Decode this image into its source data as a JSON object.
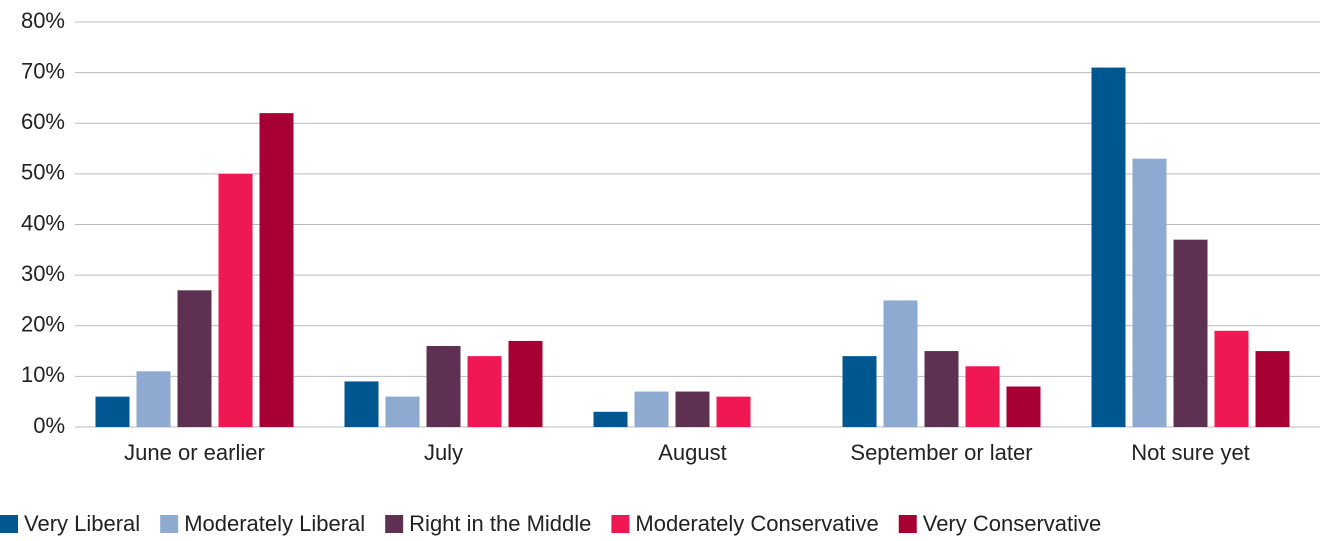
{
  "chart_data": {
    "type": "bar",
    "categories": [
      "June or earlier",
      "July",
      "August",
      "September or later",
      "Not sure yet"
    ],
    "series": [
      {
        "name": "Very Liberal",
        "color": "#00578f",
        "values": [
          6,
          9,
          3,
          14,
          71
        ]
      },
      {
        "name": "Moderately Liberal",
        "color": "#8eaad0",
        "values": [
          11,
          6,
          7,
          25,
          53
        ]
      },
      {
        "name": "Right in the Middle",
        "color": "#5e3152",
        "values": [
          27,
          16,
          7,
          15,
          37
        ]
      },
      {
        "name": "Moderately Conservative",
        "color": "#ef1852",
        "values": [
          50,
          14,
          6,
          12,
          19
        ]
      },
      {
        "name": "Very Conservative",
        "color": "#a60034",
        "values": [
          62,
          17,
          null,
          8,
          15
        ]
      }
    ],
    "ylim": [
      0,
      80
    ],
    "yticks": [
      {
        "value": 0,
        "label": "0%"
      },
      {
        "value": 10,
        "label": "10%"
      },
      {
        "value": 20,
        "label": "20%"
      },
      {
        "value": 30,
        "label": "30%"
      },
      {
        "value": 40,
        "label": "40%"
      },
      {
        "value": 50,
        "label": "50%"
      },
      {
        "value": 60,
        "label": "60%"
      },
      {
        "value": 70,
        "label": "70%"
      },
      {
        "value": 80,
        "label": "80%"
      }
    ],
    "grid": true,
    "legend": "bottom"
  }
}
